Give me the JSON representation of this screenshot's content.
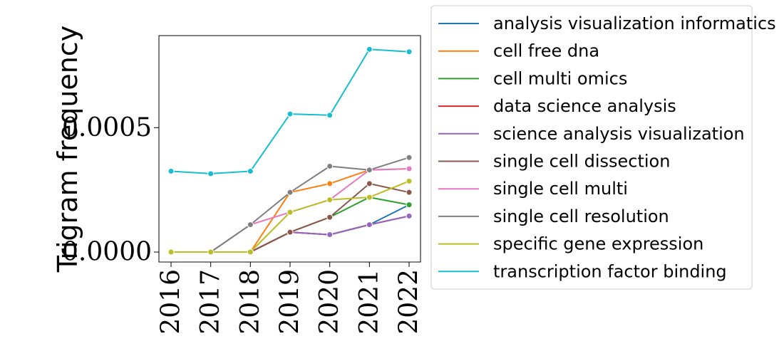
{
  "chart_data": {
    "type": "line",
    "title": "",
    "xlabel": "",
    "ylabel": "Trigram frequency",
    "x": [
      "2016",
      "2017",
      "2018",
      "2019",
      "2020",
      "2021",
      "2022"
    ],
    "y_ticks": [
      {
        "value": 0.0,
        "label": "0.0000"
      },
      {
        "value": 0.0005,
        "label": "0.0005"
      }
    ],
    "ylim": [
      -4e-05,
      0.00087
    ],
    "grid": false,
    "legend_position": "outside-right",
    "series": [
      {
        "name": "analysis visualization informatics",
        "color": "#1f77b4",
        "values": [
          0.0,
          0.0,
          0.0,
          8e-05,
          7e-05,
          0.00011,
          0.00019
        ]
      },
      {
        "name": "cell free dna",
        "color": "#ff7f0e",
        "values": [
          0.0,
          0.0,
          0.0,
          0.00024,
          0.000275,
          0.00033,
          0.000335
        ]
      },
      {
        "name": "cell multi omics",
        "color": "#2ca02c",
        "values": [
          0.0,
          0.0,
          0.0,
          8e-05,
          0.00014,
          0.00022,
          0.00019
        ]
      },
      {
        "name": "data science analysis",
        "color": "#d62728",
        "values": [
          0.0,
          0.0,
          0.0,
          8e-05,
          7e-05,
          0.00011,
          0.000145
        ]
      },
      {
        "name": "science analysis visualization",
        "color": "#9467bd",
        "values": [
          0.0,
          0.0,
          0.0,
          8e-05,
          7e-05,
          0.00011,
          0.000145
        ]
      },
      {
        "name": "single cell dissection",
        "color": "#8c564b",
        "values": [
          0.0,
          0.0,
          0.0,
          8e-05,
          0.00014,
          0.000275,
          0.00024
        ]
      },
      {
        "name": "single cell multi",
        "color": "#e377c2",
        "values": [
          0.0,
          0.0,
          0.00011,
          0.00016,
          0.00021,
          0.00033,
          0.000335
        ]
      },
      {
        "name": "single cell resolution",
        "color": "#7f7f7f",
        "values": [
          0.0,
          0.0,
          0.00011,
          0.00024,
          0.000345,
          0.00033,
          0.00038
        ]
      },
      {
        "name": "specific gene expression",
        "color": "#bcbd22",
        "values": [
          0.0,
          0.0,
          0.0,
          0.00016,
          0.00021,
          0.00022,
          0.000285
        ]
      },
      {
        "name": "transcription factor binding",
        "color": "#17becf",
        "values": [
          0.000325,
          0.000315,
          0.000325,
          0.000555,
          0.00055,
          0.000815,
          0.000805
        ]
      }
    ]
  }
}
